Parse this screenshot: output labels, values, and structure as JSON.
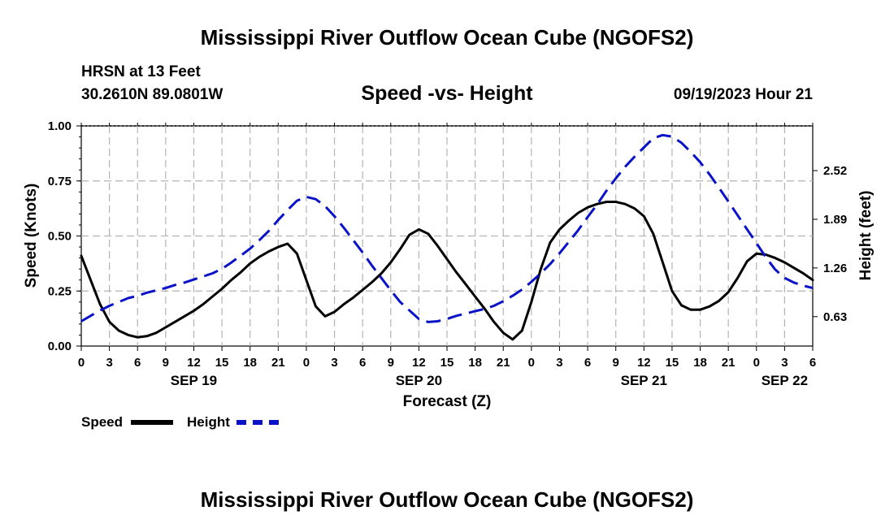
{
  "product_title": "Mississippi River Outflow Ocean Cube (NGOFS2)",
  "station": {
    "name_depth": "HRSN at 13 Feet",
    "coords": "30.2610N  89.0801W"
  },
  "date_label": "09/19/2023 Hour 21",
  "colors": {
    "speed": "#000000",
    "height": "#0a12c8",
    "grid": "#b4b4b4"
  },
  "chart_data": {
    "type": "line",
    "title": "Speed -vs- Height",
    "xlabel": "Forecast (Z)",
    "ylabel": "Speed (Knots)",
    "y2label": "Height (feet)",
    "xlim": [
      0,
      78
    ],
    "ylim": [
      0,
      1
    ],
    "y2lim": [
      0.249,
      3.099
    ],
    "yticks": [
      0,
      0.25,
      0.5,
      0.75,
      1.0
    ],
    "ytick_labels": [
      "0.00",
      "0.25",
      "0.50",
      "0.75",
      "1.00"
    ],
    "y2ticks": [
      0.63,
      1.26,
      1.89,
      2.52
    ],
    "y2tick_labels": [
      "0.63",
      "1.26",
      "1.89",
      "2.52"
    ],
    "xticks": [
      0,
      3,
      6,
      9,
      12,
      15,
      18,
      21,
      24,
      27,
      30,
      33,
      36,
      39,
      42,
      45,
      48,
      51,
      54,
      57,
      60,
      63,
      66,
      69,
      72,
      75,
      78
    ],
    "xtick_labels": [
      "0",
      "3",
      "6",
      "9",
      "12",
      "15",
      "18",
      "21",
      "0",
      "3",
      "6",
      "9",
      "12",
      "15",
      "18",
      "21",
      "0",
      "3",
      "6",
      "9",
      "12",
      "15",
      "18",
      "21",
      "0",
      "3",
      "6"
    ],
    "day_labels": [
      {
        "x": 12,
        "label": "SEP 19"
      },
      {
        "x": 36,
        "label": "SEP 20"
      },
      {
        "x": 60,
        "label": "SEP 21"
      },
      {
        "x": 75,
        "label": "SEP 22"
      }
    ],
    "grid": true,
    "legend_position": "bottom-left",
    "series": [
      {
        "name": "Speed",
        "axis": "left",
        "style": "solid",
        "x": [
          0,
          1,
          2,
          3,
          4,
          5,
          6,
          7,
          8,
          9,
          10,
          11,
          12,
          13,
          14,
          15,
          16,
          17,
          18,
          19,
          20,
          21,
          22,
          23,
          24,
          25,
          26,
          27,
          28,
          29,
          30,
          31,
          32,
          33,
          34,
          35,
          36,
          37,
          38,
          39,
          40,
          41,
          42,
          43,
          44,
          45,
          46,
          47,
          48,
          49,
          50,
          51,
          52,
          53,
          54,
          55,
          56,
          57,
          58,
          59,
          60,
          61,
          62,
          63,
          64,
          65,
          66,
          67,
          68,
          69,
          70,
          71,
          72,
          73,
          74,
          75,
          76,
          77,
          78
        ],
        "values": [
          0.41,
          0.3,
          0.19,
          0.11,
          0.07,
          0.05,
          0.04,
          0.045,
          0.06,
          0.085,
          0.11,
          0.135,
          0.16,
          0.19,
          0.225,
          0.26,
          0.3,
          0.335,
          0.375,
          0.405,
          0.43,
          0.45,
          0.465,
          0.42,
          0.3,
          0.18,
          0.135,
          0.155,
          0.19,
          0.22,
          0.255,
          0.29,
          0.33,
          0.38,
          0.44,
          0.505,
          0.53,
          0.51,
          0.455,
          0.395,
          0.335,
          0.28,
          0.225,
          0.17,
          0.11,
          0.06,
          0.03,
          0.07,
          0.2,
          0.35,
          0.47,
          0.53,
          0.57,
          0.605,
          0.63,
          0.645,
          0.655,
          0.655,
          0.645,
          0.625,
          0.59,
          0.51,
          0.38,
          0.25,
          0.185,
          0.165,
          0.165,
          0.18,
          0.205,
          0.245,
          0.31,
          0.385,
          0.42,
          0.415,
          0.4,
          0.38,
          0.355,
          0.33,
          0.3
        ]
      },
      {
        "name": "Height",
        "axis": "right",
        "style": "dashed",
        "x": [
          0,
          1,
          2,
          3,
          4,
          5,
          6,
          7,
          8,
          9,
          10,
          11,
          12,
          13,
          14,
          15,
          16,
          17,
          18,
          19,
          20,
          21,
          22,
          23,
          24,
          25,
          26,
          27,
          28,
          29,
          30,
          31,
          32,
          33,
          34,
          35,
          36,
          37,
          38,
          39,
          40,
          41,
          42,
          43,
          44,
          45,
          46,
          47,
          48,
          49,
          50,
          51,
          52,
          53,
          54,
          55,
          56,
          57,
          58,
          59,
          60,
          61,
          62,
          63,
          64,
          65,
          66,
          67,
          68,
          69,
          70,
          71,
          72,
          73,
          74,
          75,
          76,
          77,
          78
        ],
        "values": [
          0.57,
          0.64,
          0.71,
          0.77,
          0.82,
          0.87,
          0.9,
          0.94,
          0.97,
          1.0,
          1.04,
          1.07,
          1.11,
          1.15,
          1.19,
          1.25,
          1.33,
          1.42,
          1.51,
          1.62,
          1.74,
          1.88,
          2.01,
          2.13,
          2.18,
          2.15,
          2.06,
          1.93,
          1.78,
          1.62,
          1.46,
          1.29,
          1.13,
          0.97,
          0.82,
          0.71,
          0.6,
          0.56,
          0.57,
          0.6,
          0.64,
          0.67,
          0.7,
          0.73,
          0.77,
          0.83,
          0.9,
          0.98,
          1.08,
          1.19,
          1.31,
          1.45,
          1.6,
          1.75,
          1.92,
          2.08,
          2.26,
          2.42,
          2.57,
          2.7,
          2.82,
          2.94,
          2.98,
          2.96,
          2.88,
          2.76,
          2.63,
          2.47,
          2.3,
          2.12,
          1.94,
          1.76,
          1.58,
          1.4,
          1.24,
          1.13,
          1.07,
          1.03,
          1.0
        ]
      }
    ]
  }
}
